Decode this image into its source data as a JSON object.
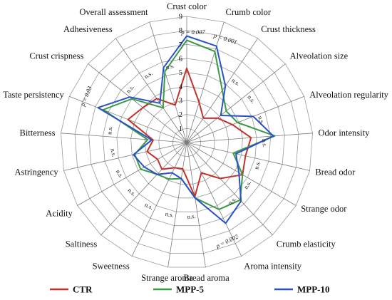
{
  "chart_data": {
    "type": "radar",
    "categories": [
      "Crust color",
      "Crumb color",
      "Crust thickness",
      "Alveolation size",
      "Alveolation regularity",
      "Odor intensity",
      "Bread odor",
      "Strange odor",
      "Crumb elasticity",
      "Aroma intensity",
      "Bread aroma",
      "Strange aroma",
      "Sweetness",
      "Saltiness",
      "Acidity",
      "Astringency",
      "Bitterness",
      "Taste persistency",
      "Crust crispness",
      "Adhesiveness",
      "Overall assessment"
    ],
    "rmin": 0,
    "rmax": 9,
    "ticks": [
      "1",
      "2",
      "3",
      "4",
      "5",
      "6",
      "7",
      "8",
      "9"
    ],
    "grid": true,
    "series": [
      {
        "name": "CTR",
        "color": "#c0322a",
        "values": [
          5.3,
          3.0,
          2.1,
          2.8,
          3.5,
          4.6,
          4.3,
          4.6,
          3.5,
          2.4,
          3.9,
          1.9,
          2.0,
          2.6,
          2.4,
          2.9,
          2.4,
          4.5,
          4.0,
          3.8,
          2.8
        ]
      },
      {
        "name": "MPP-5",
        "color": "#3a9a45",
        "values": [
          7.3,
          6.8,
          4.5,
          3.6,
          3.9,
          6.3,
          3.4,
          4.6,
          5.6,
          5.3,
          4.0,
          2.6,
          2.9,
          3.1,
          3.8,
          3.8,
          2.8,
          6.4,
          5.0,
          3.0,
          5.3
        ]
      },
      {
        "name": "MPP-10",
        "color": "#2952c8",
        "values": [
          7.6,
          7.2,
          4.9,
          3.1,
          5.1,
          6.2,
          3.6,
          4.3,
          5.7,
          6.4,
          4.0,
          2.6,
          2.4,
          3.1,
          3.5,
          3.9,
          2.5,
          6.8,
          5.2,
          3.4,
          5.6
        ]
      }
    ],
    "annotations": [
      {
        "category": "Crust color",
        "text": "p = 0.007"
      },
      {
        "category": "Crumb color",
        "text": "p < 0.001"
      },
      {
        "category": "Crust thickness",
        "text": "n.s."
      },
      {
        "category": "Alveolation size",
        "text": "n.s."
      },
      {
        "category": "Alveolation regularity",
        "text": "n.s."
      },
      {
        "category": "Odor intensity",
        "text": "n.s."
      },
      {
        "category": "Bread odor",
        "text": "n.s."
      },
      {
        "category": "Strange odor",
        "text": "n.s."
      },
      {
        "category": "Crumb elasticity",
        "text": "n.s."
      },
      {
        "category": "Aroma intensity",
        "text": "p = 0.002"
      },
      {
        "category": "Bread aroma",
        "text": "n.s."
      },
      {
        "category": "Strange aroma",
        "text": "n.s."
      },
      {
        "category": "Sweetness",
        "text": "n.s."
      },
      {
        "category": "Saltiness",
        "text": "n.s."
      },
      {
        "category": "Acidity",
        "text": "n.s."
      },
      {
        "category": "Astringency",
        "text": "n.s."
      },
      {
        "category": "Bitterness",
        "text": "n.s."
      },
      {
        "category": "Taste persistency",
        "text": "p = 0.03"
      },
      {
        "category": "Crust crispness",
        "text": "n.s."
      },
      {
        "category": "Adhesiveness",
        "text": "n.s."
      },
      {
        "category": "Overall assessment",
        "text": "n.s."
      }
    ],
    "legend": {
      "position": "bottom"
    }
  }
}
